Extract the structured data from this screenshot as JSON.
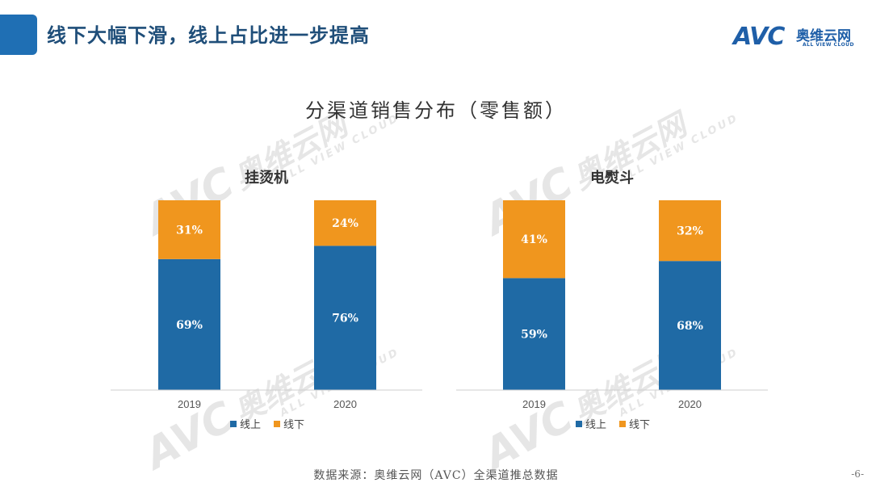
{
  "header": {
    "title": "线下大幅下滑，线上占比进一步提高"
  },
  "logo": {
    "mark": "AVC",
    "cn": "奥维云网",
    "en": "ALL VIEW CLOUD"
  },
  "watermark": {
    "mark": "AVC",
    "cn": "奥维云网",
    "en": "ALL VIEW CLOUD"
  },
  "chart_title": "分渠道销售分布（零售额）",
  "colors": {
    "online": "#1f6aa5",
    "offline": "#f0961e",
    "header_accent": "#1f6fb4",
    "title_text": "#1f4e79"
  },
  "chart_data": [
    {
      "type": "bar",
      "stacked": "percent",
      "title": "挂烫机",
      "categories": [
        "2019",
        "2020"
      ],
      "series": [
        {
          "name": "线上",
          "values": [
            69,
            76
          ],
          "labels": [
            "69%",
            "76%"
          ]
        },
        {
          "name": "线下",
          "values": [
            31,
            24
          ],
          "labels": [
            "31%",
            "24%"
          ]
        }
      ],
      "ylim": [
        0,
        100
      ],
      "grid": false,
      "legend": "bottom"
    },
    {
      "type": "bar",
      "stacked": "percent",
      "title": "电熨斗",
      "categories": [
        "2019",
        "2020"
      ],
      "series": [
        {
          "name": "线上",
          "values": [
            59,
            68
          ],
          "labels": [
            "59%",
            "68%"
          ]
        },
        {
          "name": "线下",
          "values": [
            41,
            32
          ],
          "labels": [
            "41%",
            "32%"
          ]
        }
      ],
      "ylim": [
        0,
        100
      ],
      "grid": false,
      "legend": "bottom"
    }
  ],
  "footer": {
    "source": "数据来源：奥维云网（AVC）全渠道推总数据",
    "page": "-6-"
  }
}
